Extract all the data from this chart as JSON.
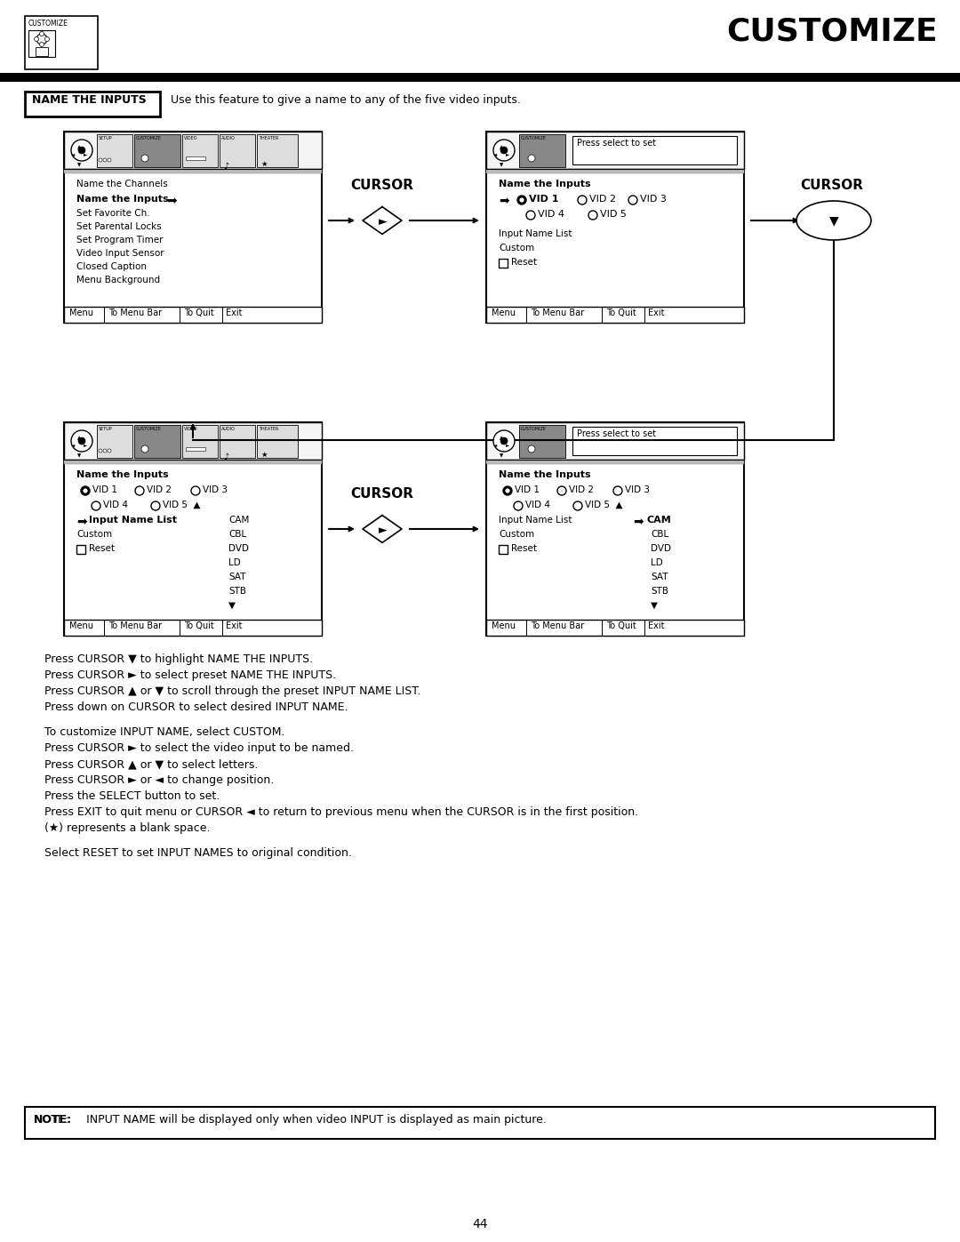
{
  "bg_color": "#ffffff",
  "title": "CUSTOMIZE",
  "page_number": "44",
  "name_the_inputs_label": "NAME THE INPUTS",
  "name_the_inputs_desc": "Use this feature to give a name to any of the five video inputs.",
  "instructions_block1": [
    "Press CURSOR ▼ to highlight NAME THE INPUTS.",
    "Press CURSOR ► to select preset NAME THE INPUTS.",
    "Press CURSOR ▲ or ▼ to scroll through the preset INPUT NAME LIST.",
    "Press down on CURSOR to select desired INPUT NAME."
  ],
  "instructions_block2": [
    "To customize INPUT NAME, select CUSTOM.",
    "Press CURSOR ► to select the video input to be named.",
    "Press CURSOR ▲ or ▼ to select letters.",
    "Press CURSOR ► or ◄ to change position.",
    "Press the SELECT button to set.",
    "Press EXIT to quit menu or CURSOR ◄ to return to previous menu when the CURSOR is in the first position.",
    "(★) represents a blank space."
  ],
  "select_reset_line": "Select RESET to set INPUT NAMES to original condition.",
  "note_bold": "NOTE:",
  "note_rest": "     INPUT NAME will be displayed only when video INPUT is displayed as main picture."
}
